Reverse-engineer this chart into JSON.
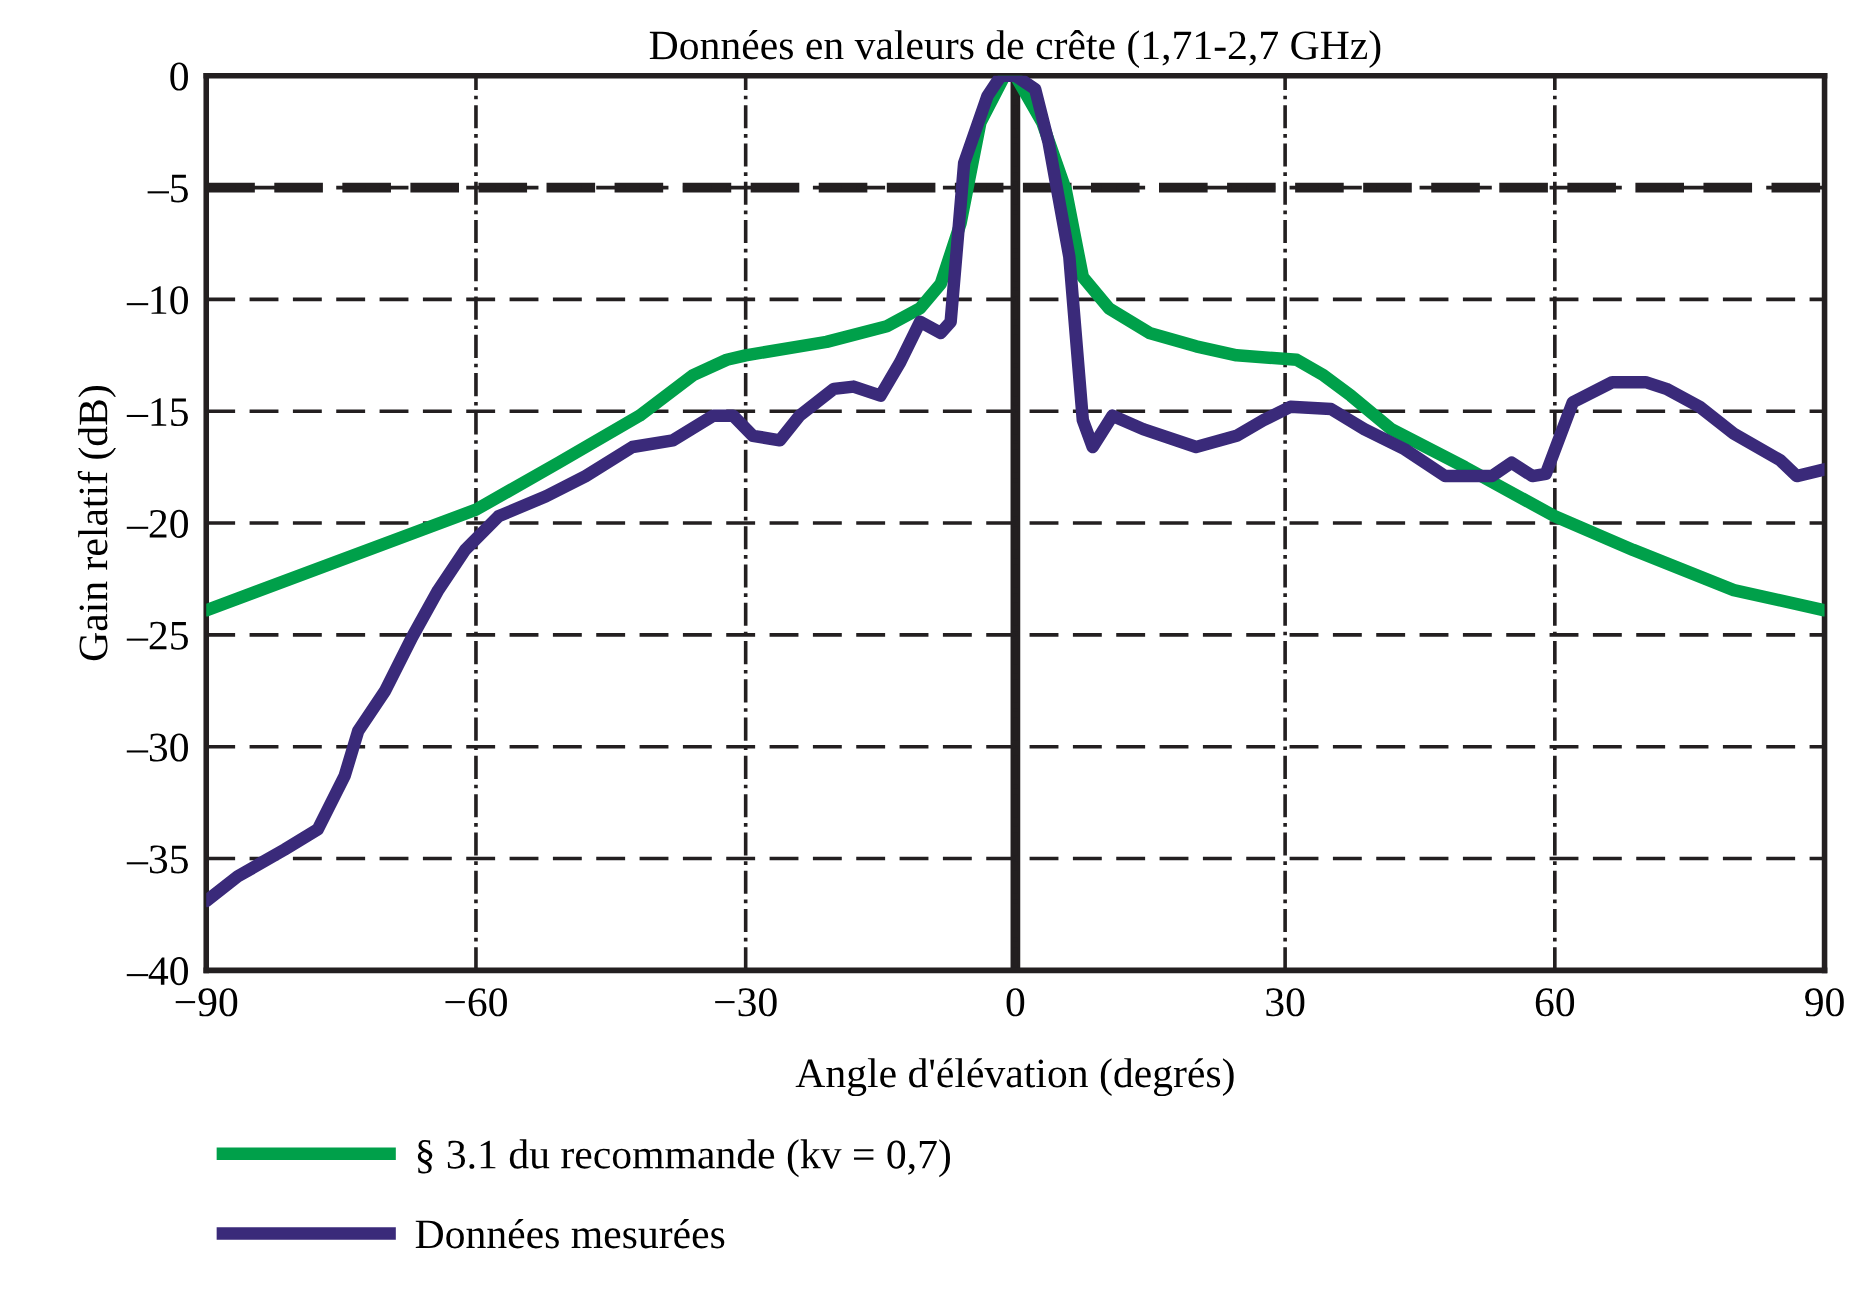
{
  "chart_data": {
    "type": "line",
    "title": "Données en valeurs de crête (1,71-2,7 GHz)",
    "xlabel": "Angle d'élévation (degrés)",
    "ylabel": "Gain relatif (dB)",
    "xlim": [
      -90,
      90
    ],
    "xticks": [
      {
        "value": -90,
        "label": "−90"
      },
      {
        "value": -60,
        "label": "−60"
      },
      {
        "value": -30,
        "label": "−30"
      },
      0,
      30,
      60,
      90
    ],
    "ylim": [
      -40,
      0
    ],
    "yticks": [
      {
        "value": -40,
        "label": "–40"
      },
      {
        "value": -35,
        "label": "–35"
      },
      {
        "value": -30,
        "label": "–30"
      },
      {
        "value": -25,
        "label": "–25"
      },
      {
        "value": -20,
        "label": "–20"
      },
      {
        "value": -15,
        "label": "–15"
      },
      {
        "value": -10,
        "label": "–10"
      },
      {
        "value": -5,
        "label": "–5"
      },
      0
    ],
    "grid": true,
    "legend": "bottom",
    "marker": "none",
    "line_style": "solid",
    "ref_lines": [
      {
        "axis": "y",
        "value": -5,
        "line_style": "dashed",
        "color": "#231f20"
      },
      {
        "axis": "x",
        "value": 0,
        "line_style": "solid",
        "color": "#231f20"
      }
    ],
    "series": [
      {
        "name": "§ 3.1 du recommande (kv = 0,7)",
        "color": "#00a04a",
        "x": [
          -90,
          -60,
          -50.8,
          -41.8,
          -35.9,
          -32.1,
          -30,
          -21,
          -14.3,
          -10.6,
          -8.3,
          -6.1,
          -3.9,
          -1.2,
          0,
          3,
          5.6,
          7.5,
          10.4,
          14.9,
          20.1,
          24.6,
          31.3,
          34.3,
          37.3,
          41.8,
          50,
          60,
          68.7,
          79.9,
          90
        ],
        "values": [
          -23.9,
          -19.4,
          -17.3,
          -15.2,
          -13.4,
          -12.7,
          -12.5,
          -11.9,
          -11.2,
          -10.4,
          -9.3,
          -6.6,
          -2.1,
          0,
          0,
          -2.1,
          -5.1,
          -9,
          -10.4,
          -11.5,
          -12.1,
          -12.5,
          -12.7,
          -13.4,
          -14.3,
          -15.8,
          -17.5,
          -19.7,
          -21.2,
          -23,
          -23.9
        ]
      },
      {
        "name": "Données mesurées",
        "color": "#3a2a7a",
        "x": [
          -90,
          -86.5,
          -81.3,
          -77.6,
          -74.6,
          -73.1,
          -70.1,
          -67.1,
          -64.2,
          -61.2,
          -57.5,
          -52.2,
          -47.8,
          -42.6,
          -38.1,
          -33.6,
          -31.4,
          -29.2,
          -26.2,
          -24,
          -20.2,
          -18,
          -15,
          -12.8,
          -10.6,
          -8.3,
          -7.2,
          -5.7,
          -3.1,
          -1.6,
          0,
          2.2,
          3.7,
          6,
          7.5,
          8.6,
          10.8,
          14.2,
          20.1,
          24.6,
          27.6,
          30.6,
          35.1,
          38.8,
          43.3,
          47.8,
          53,
          55.2,
          57.5,
          59,
          62,
          66.4,
          70.1,
          72.4,
          76.1,
          79.9,
          85.1,
          86.9,
          90
        ],
        "values": [
          -36.9,
          -35.8,
          -34.6,
          -33.7,
          -31.3,
          -29.3,
          -27.5,
          -25.1,
          -23,
          -21.2,
          -19.7,
          -18.8,
          -17.9,
          -16.6,
          -16.3,
          -15.2,
          -15.2,
          -16.1,
          -16.3,
          -15.2,
          -14,
          -13.9,
          -14.3,
          -12.8,
          -11,
          -11.5,
          -11,
          -3.9,
          -0.9,
          0,
          0,
          -0.6,
          -3,
          -8.1,
          -15.4,
          -16.6,
          -15.2,
          -15.8,
          -16.6,
          -16.1,
          -15.4,
          -14.8,
          -14.9,
          -15.8,
          -16.7,
          -17.9,
          -17.9,
          -17.3,
          -17.9,
          -17.8,
          -14.6,
          -13.7,
          -13.7,
          -14,
          -14.8,
          -16,
          -17.2,
          -17.9,
          -17.6
        ]
      }
    ]
  }
}
